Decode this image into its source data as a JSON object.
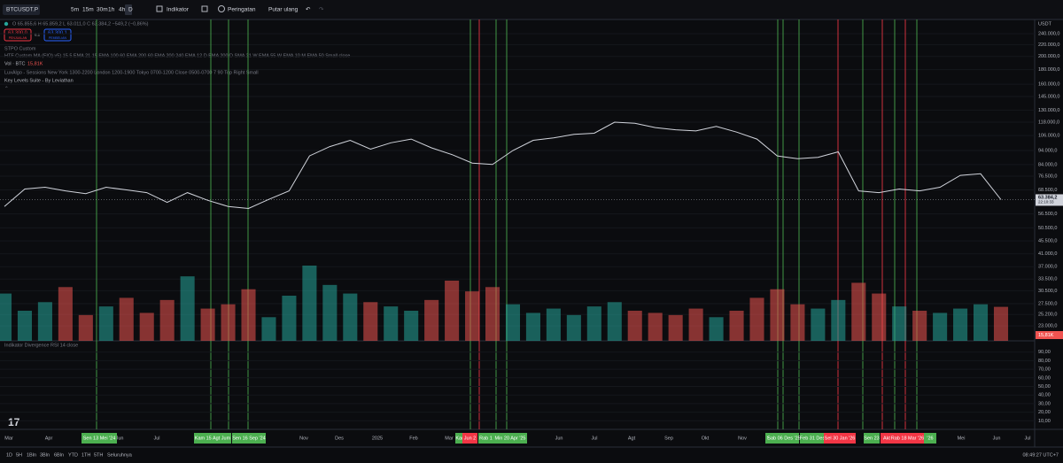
{
  "toolbar": {
    "symbol": "BTCUSDT.P",
    "intervals": [
      "5m",
      "15m",
      "30m",
      "1h",
      "4h",
      "D"
    ],
    "indicators": "Indikator",
    "alerts": "Peringatan",
    "replay": "Putar ulang"
  },
  "legend": {
    "ohlc": "O 65.855,6 H 65.859,2 L 63.011,0 C 63.384,2 −549,2 (−0,86%)",
    "sell_price": "63.300,0",
    "sell_label": "PENJUALAN",
    "spread": "0,1",
    "buy_price": "63.300,1",
    "buy_label": "PEMBELIAN",
    "indicators": [
      "STPO Custom",
      "HTF Custom MA (FIO) v5) 15 5 EMA 21 15 EMA 100 60 EMA 200 60 EMA 200 240 EMA 12 D EMA 200 D SMA 21 W EMA 55 W EMA 10 M EMA 50 Small close",
      "Vol · BTC",
      "LuxAlgo - Sessions New York 1300-2200 London 1200-1900 Tokyo 0700-1200 Close 0500-0700 7 90 Top Right Small",
      "Key Levels Suite - By Leviathan"
    ],
    "volume_value": "15,81K",
    "rsi": "Indikator Divergence RSI 14 close"
  },
  "chart_data": {
    "type": "line",
    "currency": "USDT",
    "log_scale": true,
    "color": "#d1d4dc",
    "ylim": [
      20400,
      250600
    ],
    "yticks": [
      {
        "value": 240000,
        "label": "240.000,0"
      },
      {
        "value": 220000,
        "label": "220.000,0"
      },
      {
        "value": 200000,
        "label": "200.000,0"
      },
      {
        "value": 180000,
        "label": "180.000,0"
      },
      {
        "value": 160000,
        "label": "160.000,0"
      },
      {
        "value": 145000,
        "label": "145.000,0"
      },
      {
        "value": 130000,
        "label": "130.000,0"
      },
      {
        "value": 118000,
        "label": "118.000,0"
      },
      {
        "value": 106000,
        "label": "106.000,0"
      },
      {
        "value": 94000,
        "label": "94.000,0"
      },
      {
        "value": 84000,
        "label": "84.000,0"
      },
      {
        "value": 76500,
        "label": "76.500,0"
      },
      {
        "value": 68500,
        "label": "68.500,0"
      },
      {
        "value": 56500,
        "label": "56.500,0"
      },
      {
        "value": 50500,
        "label": "50.500,0"
      },
      {
        "value": 45500,
        "label": "45.500,0"
      },
      {
        "value": 41000,
        "label": "41.000,0"
      },
      {
        "value": 37000,
        "label": "37.000,0"
      },
      {
        "value": 33500,
        "label": "33.500,0"
      },
      {
        "value": 30500,
        "label": "30.500,0"
      },
      {
        "value": 27500,
        "label": "27.500,0"
      },
      {
        "value": 25200,
        "label": "25.200,0"
      },
      {
        "value": 23000,
        "label": "23.000,0"
      }
    ],
    "values": [
      60000,
      69000,
      70000,
      68000,
      66500,
      70000,
      68500,
      67000,
      62000,
      67000,
      63000,
      60000,
      59000,
      63500,
      68000,
      90000,
      97000,
      102000,
      95000,
      100000,
      103000,
      96000,
      91000,
      85000,
      84000,
      94000,
      102000,
      104000,
      107000,
      108000,
      118000,
      117000,
      113000,
      111000,
      110000,
      114000,
      109000,
      103000,
      90000,
      88000,
      89000,
      93000,
      68000,
      67000,
      69000,
      68000,
      70000,
      77000,
      78000,
      63384.2
    ],
    "last_price": {
      "value": 63384.2,
      "label": "63.384,2"
    },
    "countdown": "22:10:33",
    "volume": {
      "up_color": "#26a69a",
      "down_color": "#ef5350",
      "values": [
        22,
        14,
        18,
        25,
        12,
        16,
        20,
        13,
        19,
        30,
        15,
        17,
        24,
        11,
        21,
        35,
        26,
        22,
        18,
        16,
        14,
        19,
        28,
        23,
        25,
        17,
        13,
        15,
        12,
        16,
        18,
        14,
        13,
        12,
        15,
        11,
        14,
        20,
        24,
        17,
        15,
        19,
        27,
        22,
        16,
        14,
        13,
        15,
        17,
        15.81
      ]
    },
    "rsi_yticks": [
      {
        "value": 90,
        "label": "90,00"
      },
      {
        "value": 80,
        "label": "80,00"
      },
      {
        "value": 70,
        "label": "70,00"
      },
      {
        "value": 60,
        "label": "60,00"
      },
      {
        "value": 50,
        "label": "50,00"
      },
      {
        "value": 40,
        "label": "40,00"
      },
      {
        "value": 30,
        "label": "30,00"
      },
      {
        "value": 20,
        "label": "20,00"
      },
      {
        "value": 10,
        "label": "10,00"
      }
    ],
    "rsi_ylim": [
      0,
      100
    ],
    "time_labels": [
      "Mar",
      "Apr",
      "Jun",
      "Jul",
      "Nov",
      "Des",
      "2025",
      "Feb",
      "Mar",
      "Jun",
      "Jul",
      "Agt",
      "Sep",
      "Okt",
      "Nov",
      "Mei",
      "Jun",
      "Jul"
    ],
    "vertical_lines": [
      "#4caf50",
      "#4caf50",
      "#4caf50",
      "#4caf50",
      "#4caf50",
      "#f23645",
      "#4caf50",
      "#4caf50",
      "#4caf50",
      "#4caf50",
      "#4caf50",
      "#f23645",
      "#4caf50",
      "#f23645",
      "#4caf50",
      "#f23645",
      "#4caf50"
    ],
    "date_badges": [
      {
        "label": "Sen 13 Mei '24",
        "color": "#4caf50"
      },
      {
        "label": "Kam 15 Agt",
        "color": "#4caf50"
      },
      {
        "label": "Jum",
        "color": "#4caf50"
      },
      {
        "label": "Sen 16 Sep '24",
        "color": "#4caf50"
      },
      {
        "label": "Kam",
        "color": "#4caf50"
      },
      {
        "label": "Jun 2",
        "color": "#f23645"
      },
      {
        "label": "Rab 1",
        "color": "#4caf50"
      },
      {
        "label": "Min 20 Apr '25",
        "color": "#4caf50"
      },
      {
        "label": "Se",
        "color": "#4caf50"
      },
      {
        "label": "Sab 06 Des '25",
        "color": "#4caf50"
      },
      {
        "label": "Feb 31 Des",
        "color": "#4caf50"
      },
      {
        "label": "Sel 30 Jan '26",
        "color": "#f23645"
      },
      {
        "label": "Sen 23",
        "color": "#4caf50"
      },
      {
        "label": "Akt",
        "color": "#f23645"
      },
      {
        "label": "Rab 18 Mar '26",
        "color": "#f23645"
      },
      {
        "label": "'26",
        "color": "#4caf50"
      }
    ]
  },
  "bottom_bar": {
    "ranges": [
      "1D",
      "5H",
      "1Bln",
      "3Bln",
      "6Bln",
      "YTD",
      "1TH",
      "5TH",
      "Seluruhnya"
    ],
    "clock": "08:49:27 UTC+7"
  }
}
